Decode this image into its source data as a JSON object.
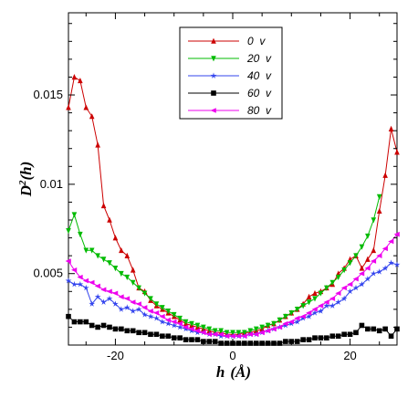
{
  "chart_data": {
    "type": "line",
    "xlabel": "h (Å)",
    "ylabel": "D²(h)",
    "ylabel_base": "D",
    "ylabel_sup": "2",
    "ylabel_rest": "(h)",
    "xlabel_h": "h",
    "xlabel_unit": "(Å)",
    "xlim": [
      -28,
      28
    ],
    "ylim": [
      0.001,
      0.0196
    ],
    "xticks": [
      -20,
      0,
      20
    ],
    "xtick_labels": [
      "-20",
      "0",
      "20"
    ],
    "yticks": [
      0.005,
      0.01,
      0.015
    ],
    "ytick_labels": [
      "0.005",
      "0.01",
      "0.015"
    ],
    "grid": false,
    "legend_position": "top-center",
    "series": [
      {
        "name": "0  v",
        "color": "#cc0000",
        "marker": "triangle-up",
        "points": [
          [
            -28,
            0.0143
          ],
          [
            -27,
            0.016
          ],
          [
            -26,
            0.0158
          ],
          [
            -25,
            0.0143
          ],
          [
            -24,
            0.0138
          ],
          [
            -23,
            0.0122
          ],
          [
            -22,
            0.0088
          ],
          [
            -21,
            0.008
          ],
          [
            -20,
            0.007
          ],
          [
            -19,
            0.0063
          ],
          [
            -18,
            0.006
          ],
          [
            -17,
            0.0052
          ],
          [
            -16,
            0.0042
          ],
          [
            -15,
            0.004
          ],
          [
            -14,
            0.0035
          ],
          [
            -13,
            0.0032
          ],
          [
            -12,
            0.003
          ],
          [
            -11,
            0.0028
          ],
          [
            -10,
            0.0026
          ],
          [
            -9,
            0.0024
          ],
          [
            -8,
            0.0022
          ],
          [
            -7,
            0.0021
          ],
          [
            -6,
            0.002
          ],
          [
            -5,
            0.0019
          ],
          [
            -4,
            0.0018
          ],
          [
            -3,
            0.0017
          ],
          [
            -2,
            0.0017
          ],
          [
            -1,
            0.0016
          ],
          [
            0,
            0.0016
          ],
          [
            1,
            0.0016
          ],
          [
            2,
            0.0017
          ],
          [
            3,
            0.0017
          ],
          [
            4,
            0.0018
          ],
          [
            5,
            0.0019
          ],
          [
            6,
            0.0021
          ],
          [
            7,
            0.0022
          ],
          [
            8,
            0.0024
          ],
          [
            9,
            0.0026
          ],
          [
            10,
            0.0028
          ],
          [
            11,
            0.003
          ],
          [
            12,
            0.0033
          ],
          [
            13,
            0.0037
          ],
          [
            14,
            0.0039
          ],
          [
            15,
            0.004
          ],
          [
            16,
            0.0042
          ],
          [
            17,
            0.0044
          ],
          [
            18,
            0.005
          ],
          [
            19,
            0.0053
          ],
          [
            20,
            0.0058
          ],
          [
            21,
            0.006
          ],
          [
            22,
            0.0053
          ],
          [
            23,
            0.0058
          ],
          [
            24,
            0.0063
          ],
          [
            25,
            0.0085
          ],
          [
            26,
            0.0105
          ],
          [
            27,
            0.0131
          ],
          [
            28,
            0.0118
          ]
        ]
      },
      {
        "name": "20  v",
        "color": "#00bb00",
        "marker": "triangle-down",
        "points": [
          [
            -28,
            0.0074
          ],
          [
            -27,
            0.0083
          ],
          [
            -26,
            0.0072
          ],
          [
            -25,
            0.0063
          ],
          [
            -24,
            0.0063
          ],
          [
            -23,
            0.006
          ],
          [
            -22,
            0.0058
          ],
          [
            -21,
            0.0056
          ],
          [
            -20,
            0.0053
          ],
          [
            -19,
            0.005
          ],
          [
            -18,
            0.0048
          ],
          [
            -17,
            0.0045
          ],
          [
            -16,
            0.0042
          ],
          [
            -15,
            0.0039
          ],
          [
            -14,
            0.0036
          ],
          [
            -13,
            0.0033
          ],
          [
            -12,
            0.0031
          ],
          [
            -11,
            0.0029
          ],
          [
            -10,
            0.0027
          ],
          [
            -9,
            0.0025
          ],
          [
            -8,
            0.0023
          ],
          [
            -7,
            0.0022
          ],
          [
            -6,
            0.0021
          ],
          [
            -5,
            0.002
          ],
          [
            -4,
            0.0019
          ],
          [
            -3,
            0.0018
          ],
          [
            -2,
            0.0018
          ],
          [
            -1,
            0.0017
          ],
          [
            0,
            0.0017
          ],
          [
            1,
            0.0017
          ],
          [
            2,
            0.0017
          ],
          [
            3,
            0.0018
          ],
          [
            4,
            0.0019
          ],
          [
            5,
            0.002
          ],
          [
            6,
            0.0021
          ],
          [
            7,
            0.0022
          ],
          [
            8,
            0.0024
          ],
          [
            9,
            0.0026
          ],
          [
            10,
            0.0028
          ],
          [
            11,
            0.003
          ],
          [
            12,
            0.0032
          ],
          [
            13,
            0.0034
          ],
          [
            14,
            0.0036
          ],
          [
            15,
            0.0039
          ],
          [
            16,
            0.0042
          ],
          [
            17,
            0.0045
          ],
          [
            18,
            0.0048
          ],
          [
            19,
            0.0052
          ],
          [
            20,
            0.0056
          ],
          [
            21,
            0.006
          ],
          [
            22,
            0.0065
          ],
          [
            23,
            0.0071
          ],
          [
            24,
            0.008
          ],
          [
            25,
            0.0093
          ]
        ]
      },
      {
        "name": "40  v",
        "color": "#3344ee",
        "marker": "star",
        "points": [
          [
            -28,
            0.0046
          ],
          [
            -27,
            0.0044
          ],
          [
            -26,
            0.0044
          ],
          [
            -25,
            0.0042
          ],
          [
            -24,
            0.0033
          ],
          [
            -23,
            0.0037
          ],
          [
            -22,
            0.0034
          ],
          [
            -21,
            0.0036
          ],
          [
            -20,
            0.0033
          ],
          [
            -19,
            0.003
          ],
          [
            -18,
            0.0031
          ],
          [
            -17,
            0.0029
          ],
          [
            -16,
            0.003
          ],
          [
            -15,
            0.0027
          ],
          [
            -14,
            0.0026
          ],
          [
            -13,
            0.0025
          ],
          [
            -12,
            0.0023
          ],
          [
            -11,
            0.0022
          ],
          [
            -10,
            0.0021
          ],
          [
            -9,
            0.002
          ],
          [
            -8,
            0.0019
          ],
          [
            -7,
            0.0018
          ],
          [
            -6,
            0.0017
          ],
          [
            -5,
            0.0017
          ],
          [
            -4,
            0.0016
          ],
          [
            -3,
            0.0016
          ],
          [
            -2,
            0.0015
          ],
          [
            -1,
            0.0015
          ],
          [
            0,
            0.0015
          ],
          [
            1,
            0.0015
          ],
          [
            2,
            0.0015
          ],
          [
            3,
            0.0016
          ],
          [
            4,
            0.0016
          ],
          [
            5,
            0.0017
          ],
          [
            6,
            0.0018
          ],
          [
            7,
            0.0019
          ],
          [
            8,
            0.002
          ],
          [
            9,
            0.0021
          ],
          [
            10,
            0.0022
          ],
          [
            11,
            0.0023
          ],
          [
            12,
            0.0025
          ],
          [
            13,
            0.0026
          ],
          [
            14,
            0.0028
          ],
          [
            15,
            0.0029
          ],
          [
            16,
            0.0032
          ],
          [
            17,
            0.0032
          ],
          [
            18,
            0.0034
          ],
          [
            19,
            0.0036
          ],
          [
            20,
            0.004
          ],
          [
            21,
            0.0042
          ],
          [
            22,
            0.0044
          ],
          [
            23,
            0.0047
          ],
          [
            24,
            0.005
          ],
          [
            25,
            0.0051
          ],
          [
            26,
            0.0053
          ],
          [
            27,
            0.0056
          ],
          [
            28,
            0.0055
          ]
        ]
      },
      {
        "name": "60  v",
        "color": "#000000",
        "marker": "square",
        "points": [
          [
            -28,
            0.0026
          ],
          [
            -27,
            0.0023
          ],
          [
            -26,
            0.0023
          ],
          [
            -25,
            0.0023
          ],
          [
            -24,
            0.0021
          ],
          [
            -23,
            0.002
          ],
          [
            -22,
            0.0021
          ],
          [
            -21,
            0.002
          ],
          [
            -20,
            0.0019
          ],
          [
            -19,
            0.0019
          ],
          [
            -18,
            0.0018
          ],
          [
            -17,
            0.0018
          ],
          [
            -16,
            0.0017
          ],
          [
            -15,
            0.0017
          ],
          [
            -14,
            0.0016
          ],
          [
            -13,
            0.0016
          ],
          [
            -12,
            0.0015
          ],
          [
            -11,
            0.0015
          ],
          [
            -10,
            0.0014
          ],
          [
            -9,
            0.0014
          ],
          [
            -8,
            0.0013
          ],
          [
            -7,
            0.0013
          ],
          [
            -6,
            0.0013
          ],
          [
            -5,
            0.0012
          ],
          [
            -4,
            0.0012
          ],
          [
            -3,
            0.0012
          ],
          [
            -2,
            0.0011
          ],
          [
            -1,
            0.0011
          ],
          [
            0,
            0.0011
          ],
          [
            1,
            0.0011
          ],
          [
            2,
            0.0011
          ],
          [
            3,
            0.0011
          ],
          [
            4,
            0.0011
          ],
          [
            5,
            0.0011
          ],
          [
            6,
            0.0011
          ],
          [
            7,
            0.0011
          ],
          [
            8,
            0.0011
          ],
          [
            9,
            0.0012
          ],
          [
            10,
            0.0012
          ],
          [
            11,
            0.0012
          ],
          [
            12,
            0.0013
          ],
          [
            13,
            0.0013
          ],
          [
            14,
            0.0014
          ],
          [
            15,
            0.0014
          ],
          [
            16,
            0.0014
          ],
          [
            17,
            0.0015
          ],
          [
            18,
            0.0015
          ],
          [
            19,
            0.0016
          ],
          [
            20,
            0.0016
          ],
          [
            21,
            0.0017
          ],
          [
            22,
            0.0021
          ],
          [
            23,
            0.0019
          ],
          [
            24,
            0.0019
          ],
          [
            25,
            0.0018
          ],
          [
            26,
            0.0019
          ],
          [
            27,
            0.0015
          ],
          [
            28,
            0.0019
          ]
        ]
      },
      {
        "name": "80  v",
        "color": "#ee00ee",
        "marker": "triangle-left",
        "points": [
          [
            -28,
            0.0057
          ],
          [
            -27,
            0.0052
          ],
          [
            -26,
            0.0048
          ],
          [
            -25,
            0.0046
          ],
          [
            -24,
            0.0045
          ],
          [
            -23,
            0.0043
          ],
          [
            -22,
            0.0041
          ],
          [
            -21,
            0.004
          ],
          [
            -20,
            0.0039
          ],
          [
            -19,
            0.0037
          ],
          [
            -18,
            0.0036
          ],
          [
            -17,
            0.0034
          ],
          [
            -16,
            0.0033
          ],
          [
            -15,
            0.0031
          ],
          [
            -14,
            0.0029
          ],
          [
            -13,
            0.0028
          ],
          [
            -12,
            0.0026
          ],
          [
            -11,
            0.0024
          ],
          [
            -10,
            0.0023
          ],
          [
            -9,
            0.0022
          ],
          [
            -8,
            0.002
          ],
          [
            -7,
            0.0019
          ],
          [
            -6,
            0.0018
          ],
          [
            -5,
            0.0017
          ],
          [
            -4,
            0.0016
          ],
          [
            -3,
            0.0016
          ],
          [
            -2,
            0.0016
          ],
          [
            -1,
            0.0015
          ],
          [
            0,
            0.0015
          ],
          [
            1,
            0.0015
          ],
          [
            2,
            0.0015
          ],
          [
            3,
            0.0016
          ],
          [
            4,
            0.0016
          ],
          [
            5,
            0.0017
          ],
          [
            6,
            0.0018
          ],
          [
            7,
            0.0019
          ],
          [
            8,
            0.002
          ],
          [
            9,
            0.0022
          ],
          [
            10,
            0.0023
          ],
          [
            11,
            0.0025
          ],
          [
            12,
            0.0026
          ],
          [
            13,
            0.0028
          ],
          [
            14,
            0.003
          ],
          [
            15,
            0.0032
          ],
          [
            16,
            0.0034
          ],
          [
            17,
            0.0036
          ],
          [
            18,
            0.0039
          ],
          [
            19,
            0.0042
          ],
          [
            20,
            0.0044
          ],
          [
            21,
            0.0047
          ],
          [
            22,
            0.005
          ],
          [
            23,
            0.0053
          ],
          [
            24,
            0.0057
          ],
          [
            25,
            0.006
          ],
          [
            26,
            0.0064
          ],
          [
            27,
            0.0068
          ],
          [
            28,
            0.0072
          ]
        ]
      }
    ]
  }
}
